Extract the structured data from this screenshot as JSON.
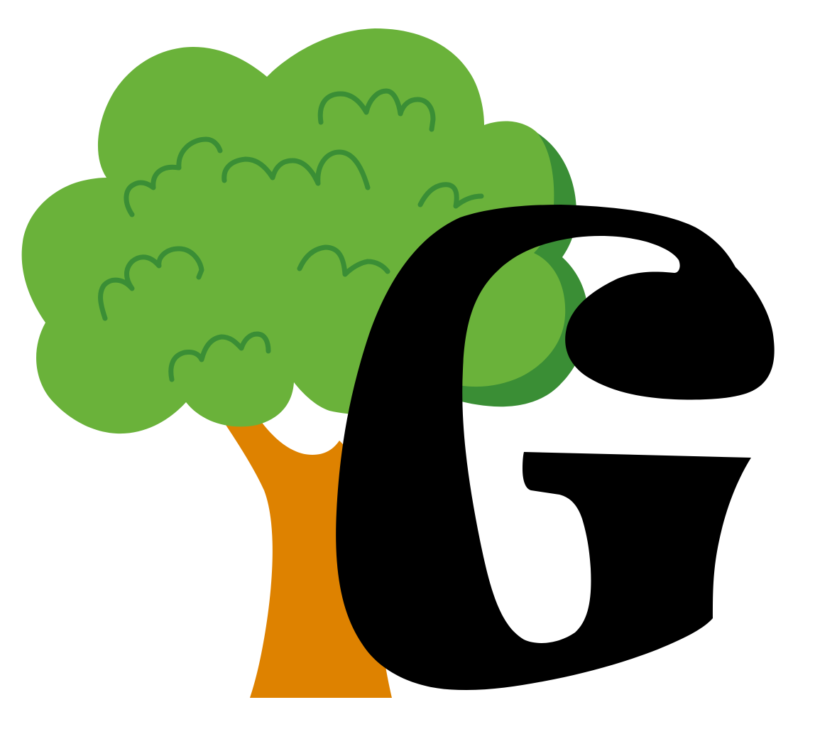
{
  "logo": {
    "letter": "G",
    "icon": "tree-icon",
    "colors": {
      "canopy": "#6AB23A",
      "canopy_shadow": "#3A8E35",
      "canopy_detail": "#3A8E35",
      "trunk": "#DE8200",
      "letter": "#000000",
      "background": "#FFFFFF"
    }
  }
}
